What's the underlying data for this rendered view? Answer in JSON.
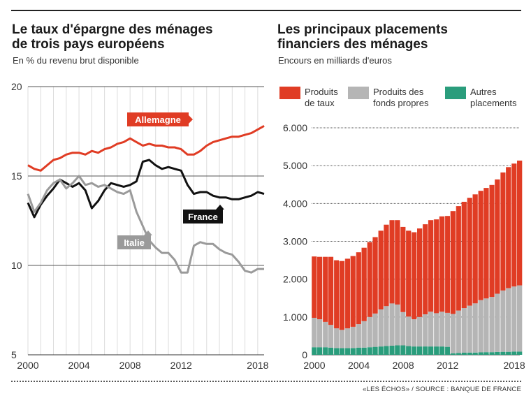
{
  "source": "«LES ÉCHOS» / SOURCE : BANQUE DE FRANCE",
  "charts": {
    "left": {
      "title_line1": "Le taux d'épargne des ménages",
      "title_line2": "de trois pays européens",
      "subtitle": "En % du revenu brut disponible"
    },
    "right": {
      "title_line1": "Les principaux placements",
      "title_line2": "financiers des ménages",
      "subtitle": "Encours en milliards d'euros"
    }
  },
  "chart_data": [
    {
      "type": "line",
      "title": "Le taux d'épargne des ménages de trois pays européens",
      "subtitle": "En % du revenu brut disponible",
      "ylim": [
        5,
        20
      ],
      "yticks": [
        "5",
        "10",
        "15",
        "20"
      ],
      "xlim": [
        2000,
        2018.5
      ],
      "xticks": [
        "2000",
        "2004",
        "2008",
        "2012",
        "2018"
      ],
      "grid": true,
      "colors": {
        "Allemagne": "#e03c24",
        "France": "#111111",
        "Italie": "#9a9a9a"
      },
      "series": [
        {
          "name": "Allemagne",
          "x": [
            2000,
            2000.5,
            2001,
            2001.5,
            2002,
            2002.5,
            2003,
            2003.5,
            2004,
            2004.5,
            2005,
            2005.5,
            2006,
            2006.5,
            2007,
            2007.5,
            2008,
            2008.5,
            2009,
            2009.5,
            2010,
            2010.5,
            2011,
            2011.5,
            2012,
            2012.5,
            2013,
            2013.5,
            2014,
            2014.5,
            2015,
            2015.5,
            2016,
            2016.5,
            2017,
            2017.5,
            2018,
            2018.5
          ],
          "values": [
            15.6,
            15.4,
            15.3,
            15.6,
            15.9,
            16.0,
            16.2,
            16.3,
            16.3,
            16.2,
            16.4,
            16.3,
            16.5,
            16.6,
            16.8,
            16.9,
            17.1,
            16.9,
            16.7,
            16.8,
            16.7,
            16.7,
            16.6,
            16.6,
            16.5,
            16.2,
            16.2,
            16.4,
            16.7,
            16.9,
            17.0,
            17.1,
            17.2,
            17.2,
            17.3,
            17.4,
            17.6,
            17.8
          ]
        },
        {
          "name": "France",
          "x": [
            2000,
            2000.5,
            2001,
            2001.5,
            2002,
            2002.5,
            2003,
            2003.5,
            2004,
            2004.5,
            2005,
            2005.5,
            2006,
            2006.5,
            2007,
            2007.5,
            2008,
            2008.5,
            2009,
            2009.5,
            2010,
            2010.5,
            2011,
            2011.5,
            2012,
            2012.5,
            2013,
            2013.5,
            2014,
            2014.5,
            2015,
            2015.5,
            2016,
            2016.5,
            2017,
            2017.5,
            2018,
            2018.5
          ],
          "values": [
            13.5,
            12.7,
            13.4,
            13.9,
            14.3,
            14.8,
            14.6,
            14.4,
            14.6,
            14.2,
            13.2,
            13.6,
            14.2,
            14.6,
            14.5,
            14.4,
            14.5,
            14.7,
            15.8,
            15.9,
            15.6,
            15.4,
            15.5,
            15.4,
            15.3,
            14.5,
            14.0,
            14.1,
            14.1,
            13.9,
            13.8,
            13.8,
            13.7,
            13.7,
            13.8,
            13.9,
            14.1,
            14.0
          ]
        },
        {
          "name": "Italie",
          "x": [
            2000,
            2000.5,
            2001,
            2001.5,
            2002,
            2002.5,
            2003,
            2003.5,
            2004,
            2004.5,
            2005,
            2005.5,
            2006,
            2006.5,
            2007,
            2007.5,
            2008,
            2008.5,
            2009,
            2009.5,
            2010,
            2010.5,
            2011,
            2011.5,
            2012,
            2012.5,
            2013,
            2013.5,
            2014,
            2014.5,
            2015,
            2015.5,
            2016,
            2016.5,
            2017,
            2017.5,
            2018,
            2018.5
          ],
          "values": [
            14.0,
            13.0,
            13.5,
            14.2,
            14.6,
            14.8,
            14.3,
            14.6,
            15.0,
            14.5,
            14.6,
            14.4,
            14.5,
            14.3,
            14.1,
            14.0,
            14.2,
            13.0,
            12.2,
            11.4,
            11.0,
            10.7,
            10.7,
            10.3,
            9.6,
            9.6,
            11.1,
            11.3,
            11.2,
            11.2,
            10.9,
            10.7,
            10.6,
            10.2,
            9.7,
            9.6,
            9.8,
            9.8
          ]
        }
      ],
      "labels": [
        "Allemagne",
        "France",
        "Italie"
      ]
    },
    {
      "type": "area",
      "title": "Les principaux placements financiers des ménages",
      "subtitle": "Encours en milliards d'euros",
      "stacked": true,
      "ylim": [
        0,
        6000
      ],
      "yticks": [
        "0",
        "1.000",
        "2.000",
        "3.000",
        "4.000",
        "5.000",
        "6.000"
      ],
      "xlim": [
        2000,
        2018.75
      ],
      "xticks": [
        "2000",
        "2004",
        "2008",
        "2012",
        "2018"
      ],
      "grid": true,
      "legend_position": "top",
      "series": [
        {
          "name": "Produits de taux",
          "color": "#e03c24",
          "x": [
            2000,
            2000.5,
            2001,
            2001.5,
            2002,
            2002.5,
            2003,
            2003.5,
            2004,
            2004.5,
            2005,
            2005.5,
            2006,
            2006.5,
            2007,
            2007.5,
            2008,
            2008.5,
            2009,
            2009.5,
            2010,
            2010.5,
            2011,
            2011.5,
            2012,
            2012.5,
            2013,
            2013.5,
            2014,
            2014.5,
            2015,
            2015.5,
            2016,
            2016.5,
            2017,
            2017.5,
            2018,
            2018.5
          ],
          "values": [
            1620,
            1650,
            1720,
            1800,
            1800,
            1820,
            1840,
            1870,
            1900,
            1940,
            1980,
            2020,
            2080,
            2150,
            2200,
            2230,
            2250,
            2270,
            2300,
            2340,
            2380,
            2420,
            2480,
            2520,
            2560,
            2720,
            2760,
            2810,
            2850,
            2880,
            2890,
            2920,
            2960,
            3020,
            3120,
            3200,
            3250,
            3300
          ]
        },
        {
          "name": "Produits des fonds propres",
          "color": "#b5b5b5",
          "x": [
            2000,
            2000.5,
            2001,
            2001.5,
            2002,
            2002.5,
            2003,
            2003.5,
            2004,
            2004.5,
            2005,
            2005.5,
            2006,
            2006.5,
            2007,
            2007.5,
            2008,
            2008.5,
            2009,
            2009.5,
            2010,
            2010.5,
            2011,
            2011.5,
            2012,
            2012.5,
            2013,
            2013.5,
            2014,
            2014.5,
            2015,
            2015.5,
            2016,
            2016.5,
            2017,
            2017.5,
            2018,
            2018.5
          ],
          "values": [
            780,
            740,
            670,
            600,
            520,
            480,
            520,
            560,
            620,
            700,
            800,
            880,
            980,
            1060,
            1120,
            1080,
            880,
            780,
            720,
            780,
            850,
            920,
            880,
            920,
            900,
            1040,
            1120,
            1180,
            1240,
            1300,
            1380,
            1420,
            1460,
            1540,
            1620,
            1680,
            1720,
            1750
          ]
        },
        {
          "name": "Autres placements",
          "color": "#2a9d7c",
          "x": [
            2000,
            2000.5,
            2001,
            2001.5,
            2002,
            2002.5,
            2003,
            2003.5,
            2004,
            2004.5,
            2005,
            2005.5,
            2006,
            2006.5,
            2007,
            2007.5,
            2008,
            2008.5,
            2009,
            2009.5,
            2010,
            2010.5,
            2011,
            2011.5,
            2012,
            2012.5,
            2013,
            2013.5,
            2014,
            2014.5,
            2015,
            2015.5,
            2016,
            2016.5,
            2017,
            2017.5,
            2018,
            2018.5
          ],
          "values": [
            200,
            200,
            200,
            190,
            180,
            180,
            180,
            180,
            190,
            190,
            200,
            210,
            220,
            230,
            240,
            250,
            250,
            230,
            220,
            220,
            220,
            220,
            220,
            220,
            210,
            40,
            50,
            55,
            60,
            60,
            65,
            70,
            70,
            75,
            80,
            80,
            85,
            85
          ]
        }
      ]
    }
  ]
}
